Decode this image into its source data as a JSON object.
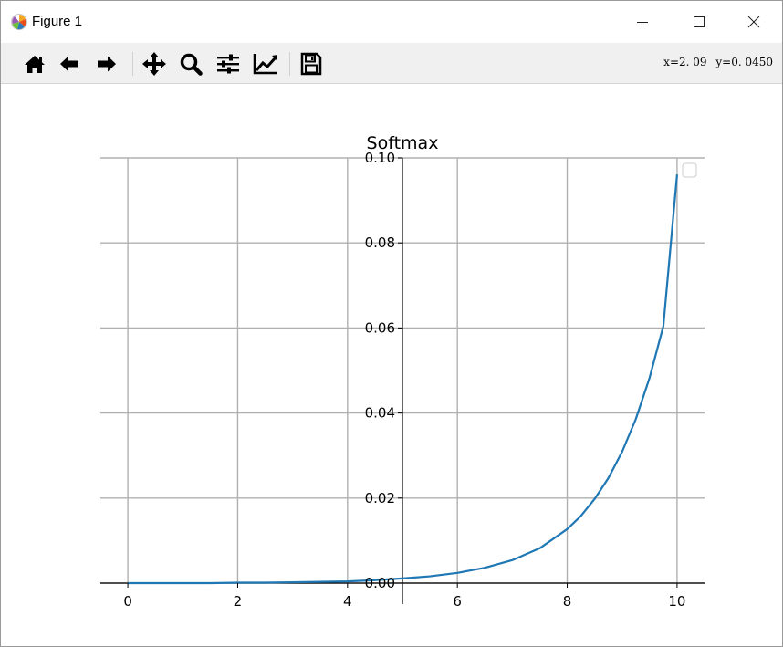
{
  "window": {
    "title": "Figure 1"
  },
  "toolbar": {
    "tools": [
      {
        "name": "home-icon"
      },
      {
        "name": "back-arrow-icon"
      },
      {
        "name": "forward-arrow-icon"
      },
      {
        "name": "pan-icon"
      },
      {
        "name": "zoom-icon"
      },
      {
        "name": "subplots-icon"
      },
      {
        "name": "edit-axes-icon"
      },
      {
        "name": "save-icon"
      }
    ],
    "coords": {
      "x_label": "x=2. 09",
      "y_label": "y=0. 0450"
    }
  },
  "chart_data": {
    "type": "line",
    "title": "Softmax",
    "xlabel": "",
    "ylabel": "",
    "xlim": [
      -0.5,
      10.5
    ],
    "ylim": [
      0,
      0.1
    ],
    "x_ticks": [
      "0",
      "2",
      "4",
      "6",
      "8",
      "10"
    ],
    "x_tick_values": [
      0,
      2,
      4,
      6,
      8,
      10
    ],
    "y_ticks": [
      "0.00",
      "0.02",
      "0.04",
      "0.06",
      "0.08",
      "0.10"
    ],
    "y_tick_values": [
      0,
      0.02,
      0.04,
      0.06,
      0.08,
      0.1
    ],
    "grid": true,
    "spines": "centered at x=5, y=0",
    "legend": "top-right, empty",
    "series": [
      {
        "color": "#1f77b4",
        "x": [
          0,
          0.5,
          1,
          1.5,
          2,
          2.5,
          3,
          3.5,
          4,
          4.5,
          5,
          5.5,
          6,
          6.5,
          7,
          7.5,
          8,
          8.25,
          8.5,
          8.75,
          9,
          9.25,
          9.5,
          9.75,
          10
        ],
        "y": [
          0.0,
          0.0,
          0.0,
          0.0,
          0.0001,
          0.0001,
          0.0002,
          0.0003,
          0.0004,
          0.0007,
          0.0011,
          0.0016,
          0.0024,
          0.0036,
          0.0054,
          0.0082,
          0.0127,
          0.0158,
          0.0198,
          0.0247,
          0.0309,
          0.0386,
          0.0483,
          0.0604,
          0.0961
        ]
      }
    ]
  }
}
